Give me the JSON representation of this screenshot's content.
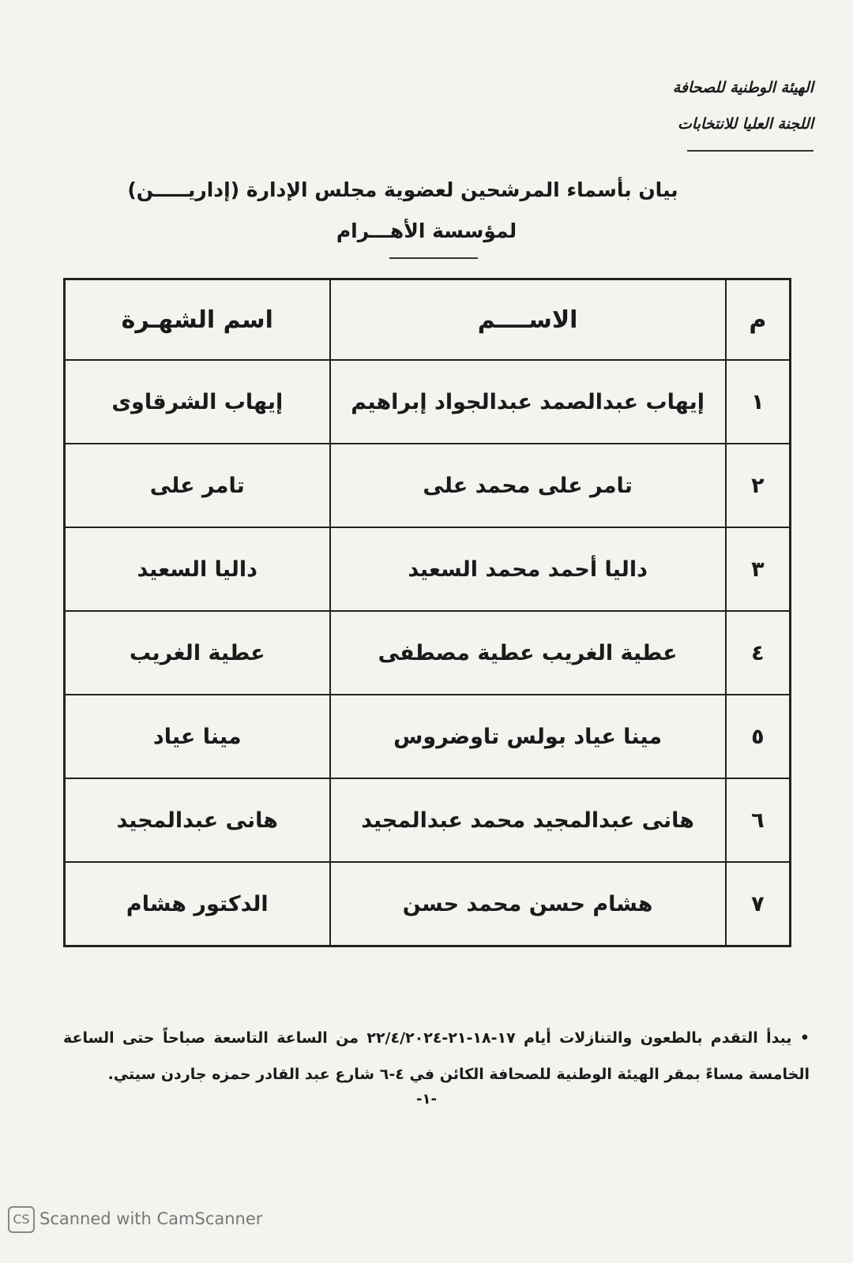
{
  "header": {
    "lines": [
      "الهيئة الوطنية للصحافة",
      "اللجنة العليا للانتخابات"
    ]
  },
  "title": "بيان بأسماء المرشحين لعضوية مجلس الإدارة (إداريـــــن)",
  "subtitle": "لمؤسسة الأهـــرام",
  "table": {
    "columns": [
      "م",
      "الاســــم",
      "اسم الشهـرة"
    ],
    "rows": [
      [
        "١",
        "إيهاب عبدالصمد عبدالجواد إبراهيم",
        "إيهاب الشرقاوى"
      ],
      [
        "٢",
        "تامر على محمد على",
        "تامر على"
      ],
      [
        "٣",
        "داليا أحمد محمد السعيد",
        "داليا السعيد"
      ],
      [
        "٤",
        "عطية الغريب عطية مصطفى",
        "عطية الغريب"
      ],
      [
        "٥",
        "مينا عياد بولس تاوضروس",
        "مينا عياد"
      ],
      [
        "٦",
        "هانى عبدالمجيد محمد عبدالمجيد",
        "هانى عبدالمجيد"
      ],
      [
        "٧",
        "هشام حسن محمد حسن",
        "الدكتور هشام"
      ]
    ]
  },
  "note": "يبدأ التقدم بالطعون والتنازلات أيام ١٧-١٨-٢١-٢٢/٤/٢٠٢٤ من الساعة التاسعة صباحاً حتى الساعة الخامسة مساءً بمقر الهيئة الوطنية للصحافة الكائن في ٤-٦ شارع عبد القادر حمزه جاردن سيتي.",
  "page_number": "-١-",
  "footer": "Scanned with CamScanner"
}
